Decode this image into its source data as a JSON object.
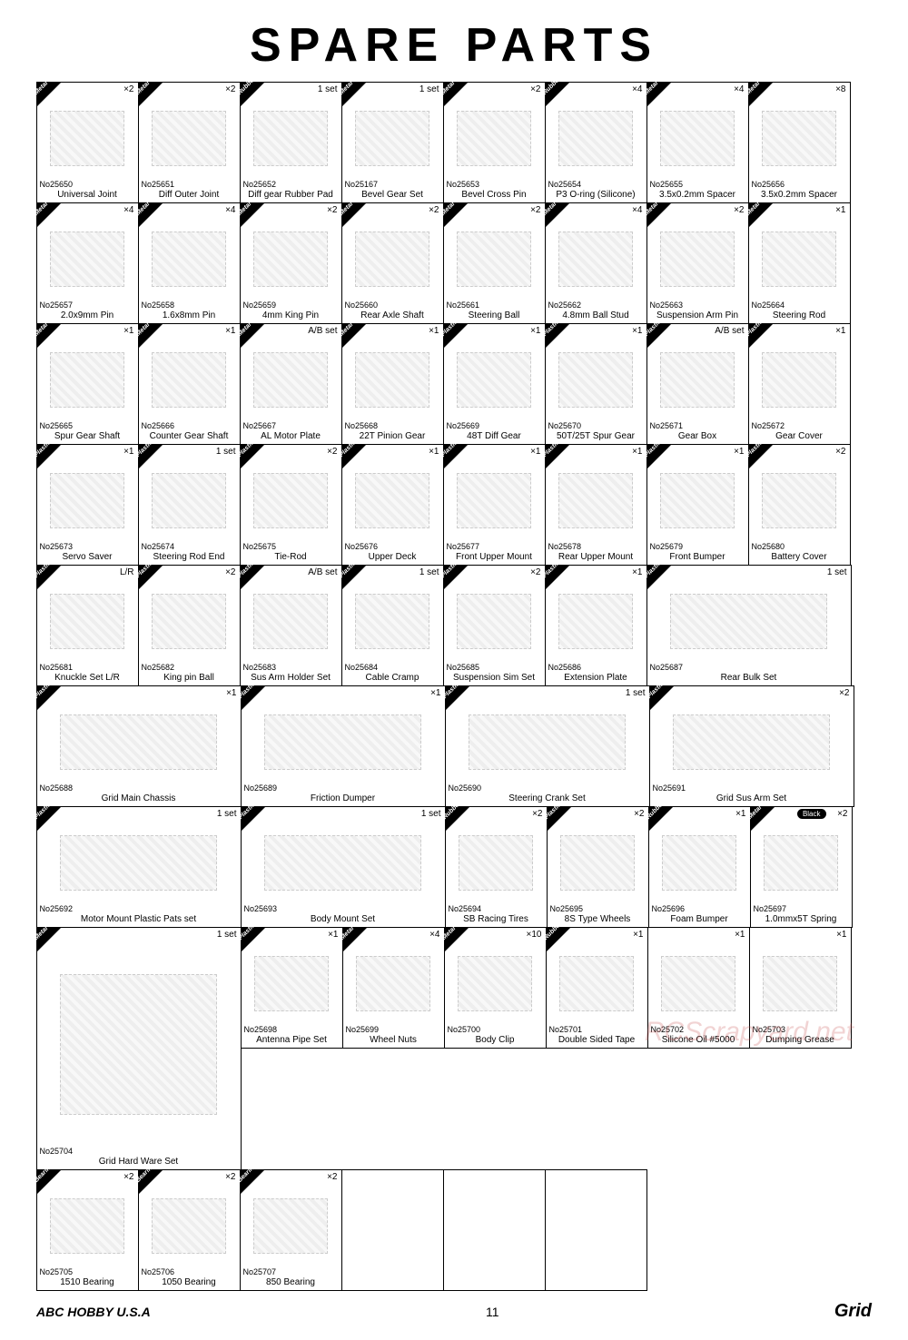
{
  "page": {
    "title": "SPARE PARTS",
    "page_number": "11",
    "footer_left": "ABC HOBBY U.S.A",
    "footer_right": "Grid",
    "watermark": "RCScrapyard.net"
  },
  "materials": {
    "metal": "Metal",
    "plastic": "Plastic",
    "rubber": "Rubber",
    "bearing": "Bearing"
  },
  "parts": [
    {
      "no": "No25650",
      "name": "Universal Joint",
      "qty": "×2",
      "mat": "metal",
      "w": 1
    },
    {
      "no": "No25651",
      "name": "Diff Outer Joint",
      "qty": "×2",
      "mat": "metal",
      "w": 1
    },
    {
      "no": "No25652",
      "name": "Diff gear Rubber Pad",
      "qty": "1 set",
      "mat": "rubber",
      "w": 1
    },
    {
      "no": "No25167",
      "name": "Bevel Gear Set",
      "qty": "1 set",
      "mat": "metal",
      "w": 1
    },
    {
      "no": "No25653",
      "name": "Bevel Cross Pin",
      "qty": "×2",
      "mat": "metal",
      "w": 1
    },
    {
      "no": "No25654",
      "name": "P3 O-ring (Silicone)",
      "qty": "×4",
      "mat": "rubber",
      "w": 1
    },
    {
      "no": "No25655",
      "name": "3.5x0.2mm Spacer",
      "qty": "×4",
      "mat": "metal",
      "w": 1
    },
    {
      "no": "No25656",
      "name": "3.5x0.2mm Spacer",
      "qty": "×8",
      "mat": "metal",
      "w": 1
    },
    {
      "no": "No25657",
      "name": "2.0x9mm Pin",
      "qty": "×4",
      "mat": "metal",
      "w": 1
    },
    {
      "no": "No25658",
      "name": "1.6x8mm Pin",
      "qty": "×4",
      "mat": "metal",
      "w": 1
    },
    {
      "no": "No25659",
      "name": "4mm King Pin",
      "qty": "×2",
      "mat": "metal",
      "w": 1
    },
    {
      "no": "No25660",
      "name": "Rear Axle Shaft",
      "qty": "×2",
      "mat": "metal",
      "w": 1
    },
    {
      "no": "No25661",
      "name": "Steering Ball",
      "qty": "×2",
      "mat": "metal",
      "w": 1
    },
    {
      "no": "No25662",
      "name": "4.8mm Ball Stud",
      "qty": "×4",
      "mat": "metal",
      "w": 1
    },
    {
      "no": "No25663",
      "name": "Suspension Arm Pin",
      "qty": "×2",
      "mat": "metal",
      "w": 1
    },
    {
      "no": "No25664",
      "name": "Steering Rod",
      "qty": "×1",
      "mat": "metal",
      "w": 1
    },
    {
      "no": "No25665",
      "name": "Spur Gear Shaft",
      "qty": "×1",
      "mat": "metal",
      "w": 1
    },
    {
      "no": "No25666",
      "name": "Counter Gear Shaft",
      "qty": "×1",
      "mat": "metal",
      "w": 1
    },
    {
      "no": "No25667",
      "name": "AL Motor Plate",
      "qty": "A/B set",
      "mat": "metal",
      "w": 1
    },
    {
      "no": "No25668",
      "name": "22T Pinion Gear",
      "qty": "×1",
      "mat": "metal",
      "w": 1
    },
    {
      "no": "No25669",
      "name": "48T Diff Gear",
      "qty": "×1",
      "mat": "plastic",
      "w": 1
    },
    {
      "no": "No25670",
      "name": "50T/25T Spur Gear",
      "qty": "×1",
      "mat": "plastic",
      "w": 1
    },
    {
      "no": "No25671",
      "name": "Gear Box",
      "qty": "A/B set",
      "mat": "plastic",
      "w": 1
    },
    {
      "no": "No25672",
      "name": "Gear Cover",
      "qty": "×1",
      "mat": "plastic",
      "w": 1
    },
    {
      "no": "No25673",
      "name": "Servo Saver",
      "qty": "×1",
      "mat": "plastic",
      "w": 1
    },
    {
      "no": "No25674",
      "name": "Steering Rod End",
      "qty": "1 set",
      "mat": "plastic",
      "w": 1
    },
    {
      "no": "No25675",
      "name": "Tie-Rod",
      "qty": "×2",
      "mat": "plastic",
      "w": 1
    },
    {
      "no": "No25676",
      "name": "Upper Deck",
      "qty": "×1",
      "mat": "plastic",
      "w": 1
    },
    {
      "no": "No25677",
      "name": "Front Upper Mount",
      "qty": "×1",
      "mat": "plastic",
      "w": 1
    },
    {
      "no": "No25678",
      "name": "Rear Upper Mount",
      "qty": "×1",
      "mat": "plastic",
      "w": 1
    },
    {
      "no": "No25679",
      "name": "Front Bumper",
      "qty": "×1",
      "mat": "plastic",
      "w": 1
    },
    {
      "no": "No25680",
      "name": "Battery Cover",
      "qty": "×2",
      "mat": "plastic",
      "w": 1
    },
    {
      "no": "No25681",
      "name": "Knuckle Set L/R",
      "qty": "L/R",
      "mat": "plastic",
      "w": 1
    },
    {
      "no": "No25682",
      "name": "King pin Ball",
      "qty": "×2",
      "mat": "plastic",
      "w": 1
    },
    {
      "no": "No25683",
      "name": "Sus Arm Holder Set",
      "qty": "A/B set",
      "mat": "plastic",
      "w": 1
    },
    {
      "no": "No25684",
      "name": "Cable Cramp",
      "qty": "1 set",
      "mat": "plastic",
      "w": 1
    },
    {
      "no": "No25685",
      "name": "Suspension Sim Set",
      "qty": "×2",
      "mat": "plastic",
      "w": 1
    },
    {
      "no": "No25686",
      "name": "Extension Plate",
      "qty": "×1",
      "mat": "plastic",
      "w": 1
    },
    {
      "no": "No25687",
      "name": "Rear Bulk Set",
      "qty": "1 set",
      "mat": "plastic",
      "w": 2
    },
    {
      "no": "No25688",
      "name": "Grid Main Chassis",
      "qty": "×1",
      "mat": "plastic",
      "w": 2
    },
    {
      "no": "No25689",
      "name": "Friction Dumper",
      "qty": "×1",
      "mat": "plastic",
      "w": 2
    },
    {
      "no": "No25690",
      "name": "Steering Crank Set",
      "qty": "1 set",
      "mat": "plastic",
      "w": 2
    },
    {
      "no": "No25691",
      "name": "Grid Sus Arm Set",
      "qty": "×2",
      "mat": "plastic",
      "w": 2
    },
    {
      "no": "No25692",
      "name": "Motor Mount Plastic Pats set",
      "qty": "1 set",
      "mat": "plastic",
      "w": 2
    },
    {
      "no": "No25693",
      "name": "Body Mount Set",
      "qty": "1 set",
      "mat": "plastic",
      "w": 2
    },
    {
      "no": "No25694",
      "name": "SB Racing Tires",
      "qty": "×2",
      "mat": "rubber",
      "w": 1
    },
    {
      "no": "No25695",
      "name": "8S Type Wheels",
      "qty": "×2",
      "mat": "plastic",
      "w": 1
    },
    {
      "no": "No25696",
      "name": "Foam Bumper",
      "qty": "×1",
      "mat": "rubber",
      "w": 1
    },
    {
      "no": "No25697",
      "name": "1.0mmx5T Spring",
      "qty": "×2",
      "mat": "metal",
      "w": 1,
      "tag": "Black"
    },
    {
      "no": "No25704",
      "name": "Grid Hard Ware Set",
      "qty": "1 set",
      "mat": "metal",
      "w": 2,
      "h": 2
    },
    {
      "no": "No25698",
      "name": "Antenna Pipe Set",
      "qty": "×1",
      "mat": "plastic",
      "w": 1
    },
    {
      "no": "No25699",
      "name": "Wheel Nuts",
      "qty": "×4",
      "mat": "metal",
      "w": 1
    },
    {
      "no": "No25700",
      "name": "Body Clip",
      "qty": "×10",
      "mat": "metal",
      "w": 1
    },
    {
      "no": "No25701",
      "name": "Double Sided Tape",
      "qty": "×1",
      "mat": "rubber",
      "w": 1
    },
    {
      "no": "No25702",
      "name": "Silicone Oil #5000",
      "qty": "×1",
      "mat": "",
      "w": 1
    },
    {
      "no": "No25703",
      "name": "Dumping Grease",
      "qty": "×1",
      "mat": "",
      "w": 1
    },
    {
      "no": "No25705",
      "name": "1510 Bearing",
      "qty": "×2",
      "mat": "bearing",
      "w": 1
    },
    {
      "no": "No25706",
      "name": "1050 Bearing",
      "qty": "×2",
      "mat": "bearing",
      "w": 1
    },
    {
      "no": "No25707",
      "name": "850 Bearing",
      "qty": "×2",
      "mat": "bearing",
      "w": 1
    },
    {
      "no": "",
      "name": "",
      "qty": "",
      "mat": "",
      "w": 1,
      "empty": true
    },
    {
      "no": "",
      "name": "",
      "qty": "",
      "mat": "",
      "w": 1,
      "empty": true
    },
    {
      "no": "",
      "name": "",
      "qty": "",
      "mat": "",
      "w": 1,
      "empty": true
    }
  ]
}
